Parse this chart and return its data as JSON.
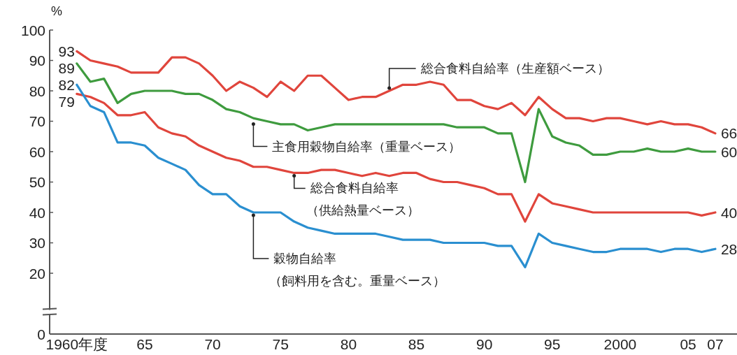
{
  "chart_data": {
    "type": "line",
    "ylabel": "%",
    "x": [
      1960,
      1961,
      1962,
      1963,
      1964,
      1965,
      1966,
      1967,
      1968,
      1969,
      1970,
      1971,
      1972,
      1973,
      1974,
      1975,
      1976,
      1977,
      1978,
      1979,
      1980,
      1981,
      1982,
      1983,
      1984,
      1985,
      1986,
      1987,
      1988,
      1989,
      1990,
      1991,
      1992,
      1993,
      1994,
      1995,
      1996,
      1997,
      1998,
      1999,
      2000,
      2001,
      2002,
      2003,
      2004,
      2005,
      2006,
      2007
    ],
    "series": [
      {
        "color": "#e0453c",
        "values": [
          93,
          90,
          89,
          88,
          86,
          86,
          86,
          91,
          91,
          89,
          85,
          80,
          83,
          81,
          78,
          83,
          80,
          85,
          85,
          81,
          77,
          78,
          78,
          80,
          82,
          82,
          83,
          82,
          77,
          77,
          75,
          74,
          76,
          72,
          78,
          74,
          71,
          71,
          70,
          71,
          71,
          70,
          69,
          70,
          69,
          69,
          68,
          66
        ],
        "value_labels": [
          "93",
          null,
          null,
          null,
          null,
          null,
          null,
          null,
          null,
          null,
          null,
          null,
          null,
          null,
          null,
          null,
          null,
          null,
          null,
          null,
          null,
          null,
          null,
          null,
          null,
          null,
          null,
          null,
          null,
          null,
          null,
          null,
          null,
          null,
          null,
          null,
          null,
          null,
          null,
          null,
          null,
          null,
          null,
          null,
          null,
          null,
          null,
          "66"
        ]
      },
      {
        "color": "#3e9b3e",
        "values": [
          89,
          83,
          84,
          76,
          79,
          80,
          80,
          80,
          79,
          79,
          77,
          74,
          73,
          71,
          70,
          69,
          69,
          67,
          68,
          69,
          69,
          69,
          69,
          69,
          69,
          69,
          69,
          69,
          68,
          68,
          68,
          66,
          66,
          50,
          74,
          65,
          63,
          62,
          59,
          59,
          60,
          60,
          61,
          60,
          60,
          61,
          60,
          60
        ],
        "value_labels": [
          "89",
          null,
          null,
          null,
          null,
          null,
          null,
          null,
          null,
          null,
          null,
          null,
          null,
          null,
          null,
          null,
          null,
          null,
          null,
          null,
          null,
          null,
          null,
          null,
          null,
          null,
          null,
          null,
          null,
          null,
          null,
          null,
          null,
          null,
          null,
          null,
          null,
          null,
          null,
          null,
          null,
          null,
          null,
          null,
          null,
          null,
          null,
          "60"
        ]
      },
      {
        "color": "#e0453c",
        "values": [
          79,
          78,
          76,
          72,
          72,
          73,
          68,
          66,
          65,
          62,
          60,
          58,
          57,
          55,
          55,
          54,
          53,
          53,
          54,
          54,
          53,
          52,
          53,
          52,
          53,
          53,
          51,
          50,
          50,
          49,
          48,
          46,
          46,
          37,
          46,
          43,
          42,
          41,
          40,
          40,
          40,
          40,
          40,
          40,
          40,
          40,
          39,
          40
        ],
        "value_labels": [
          "79",
          null,
          null,
          null,
          null,
          null,
          null,
          null,
          null,
          null,
          null,
          null,
          null,
          null,
          null,
          null,
          null,
          null,
          null,
          null,
          null,
          null,
          null,
          null,
          null,
          null,
          null,
          null,
          null,
          null,
          null,
          null,
          null,
          null,
          null,
          null,
          null,
          null,
          null,
          null,
          null,
          null,
          null,
          null,
          null,
          null,
          null,
          "40"
        ]
      },
      {
        "color": "#2a8fd0",
        "values": [
          82,
          75,
          73,
          63,
          63,
          62,
          58,
          56,
          54,
          49,
          46,
          46,
          42,
          40,
          40,
          40,
          37,
          35,
          34,
          33,
          33,
          33,
          33,
          32,
          31,
          31,
          31,
          30,
          30,
          30,
          30,
          29,
          29,
          22,
          33,
          30,
          29,
          28,
          27,
          27,
          28,
          28,
          28,
          27,
          28,
          28,
          27,
          28
        ],
        "value_labels": [
          "82",
          null,
          null,
          null,
          null,
          null,
          null,
          null,
          null,
          null,
          null,
          null,
          null,
          null,
          null,
          null,
          null,
          null,
          null,
          null,
          null,
          null,
          null,
          null,
          null,
          null,
          null,
          null,
          null,
          null,
          null,
          null,
          null,
          null,
          null,
          null,
          null,
          null,
          null,
          null,
          null,
          null,
          null,
          null,
          null,
          null,
          null,
          "28"
        ]
      }
    ],
    "xlim": [
      1958,
      2008.6
    ],
    "xticks": [
      {
        "value": 1960,
        "label": "1960年度"
      },
      {
        "value": 1965,
        "label": "65"
      },
      {
        "value": 1970,
        "label": "70"
      },
      {
        "value": 1975,
        "label": "75"
      },
      {
        "value": 1980,
        "label": "80"
      },
      {
        "value": 1985,
        "label": "85"
      },
      {
        "value": 1990,
        "label": "90"
      },
      {
        "value": 1995,
        "label": "95"
      },
      {
        "value": 2000,
        "label": "2000"
      },
      {
        "value": 2005,
        "label": "05"
      },
      {
        "value": 2007,
        "label": "07"
      }
    ],
    "ylim": [
      0,
      100
    ],
    "yticks": [
      0,
      20,
      30,
      40,
      50,
      60,
      70,
      80,
      90,
      100
    ],
    "annotations": [
      {
        "text": "総合食料自給率（生産額ベース）",
        "x": 1983,
        "y": 80
      },
      {
        "text": "主食用穀物自給率（重量ベース）",
        "x": 1973,
        "y": 70
      },
      {
        "text": "総合食料自給率（供給熱量ベース）",
        "x": 1976,
        "y": 53
      },
      {
        "text": "穀物自給率（飼料用を含む。重量ベース）",
        "x": 1973,
        "y": 40
      }
    ],
    "grid": false,
    "marker": "none",
    "line_style": "solid"
  }
}
